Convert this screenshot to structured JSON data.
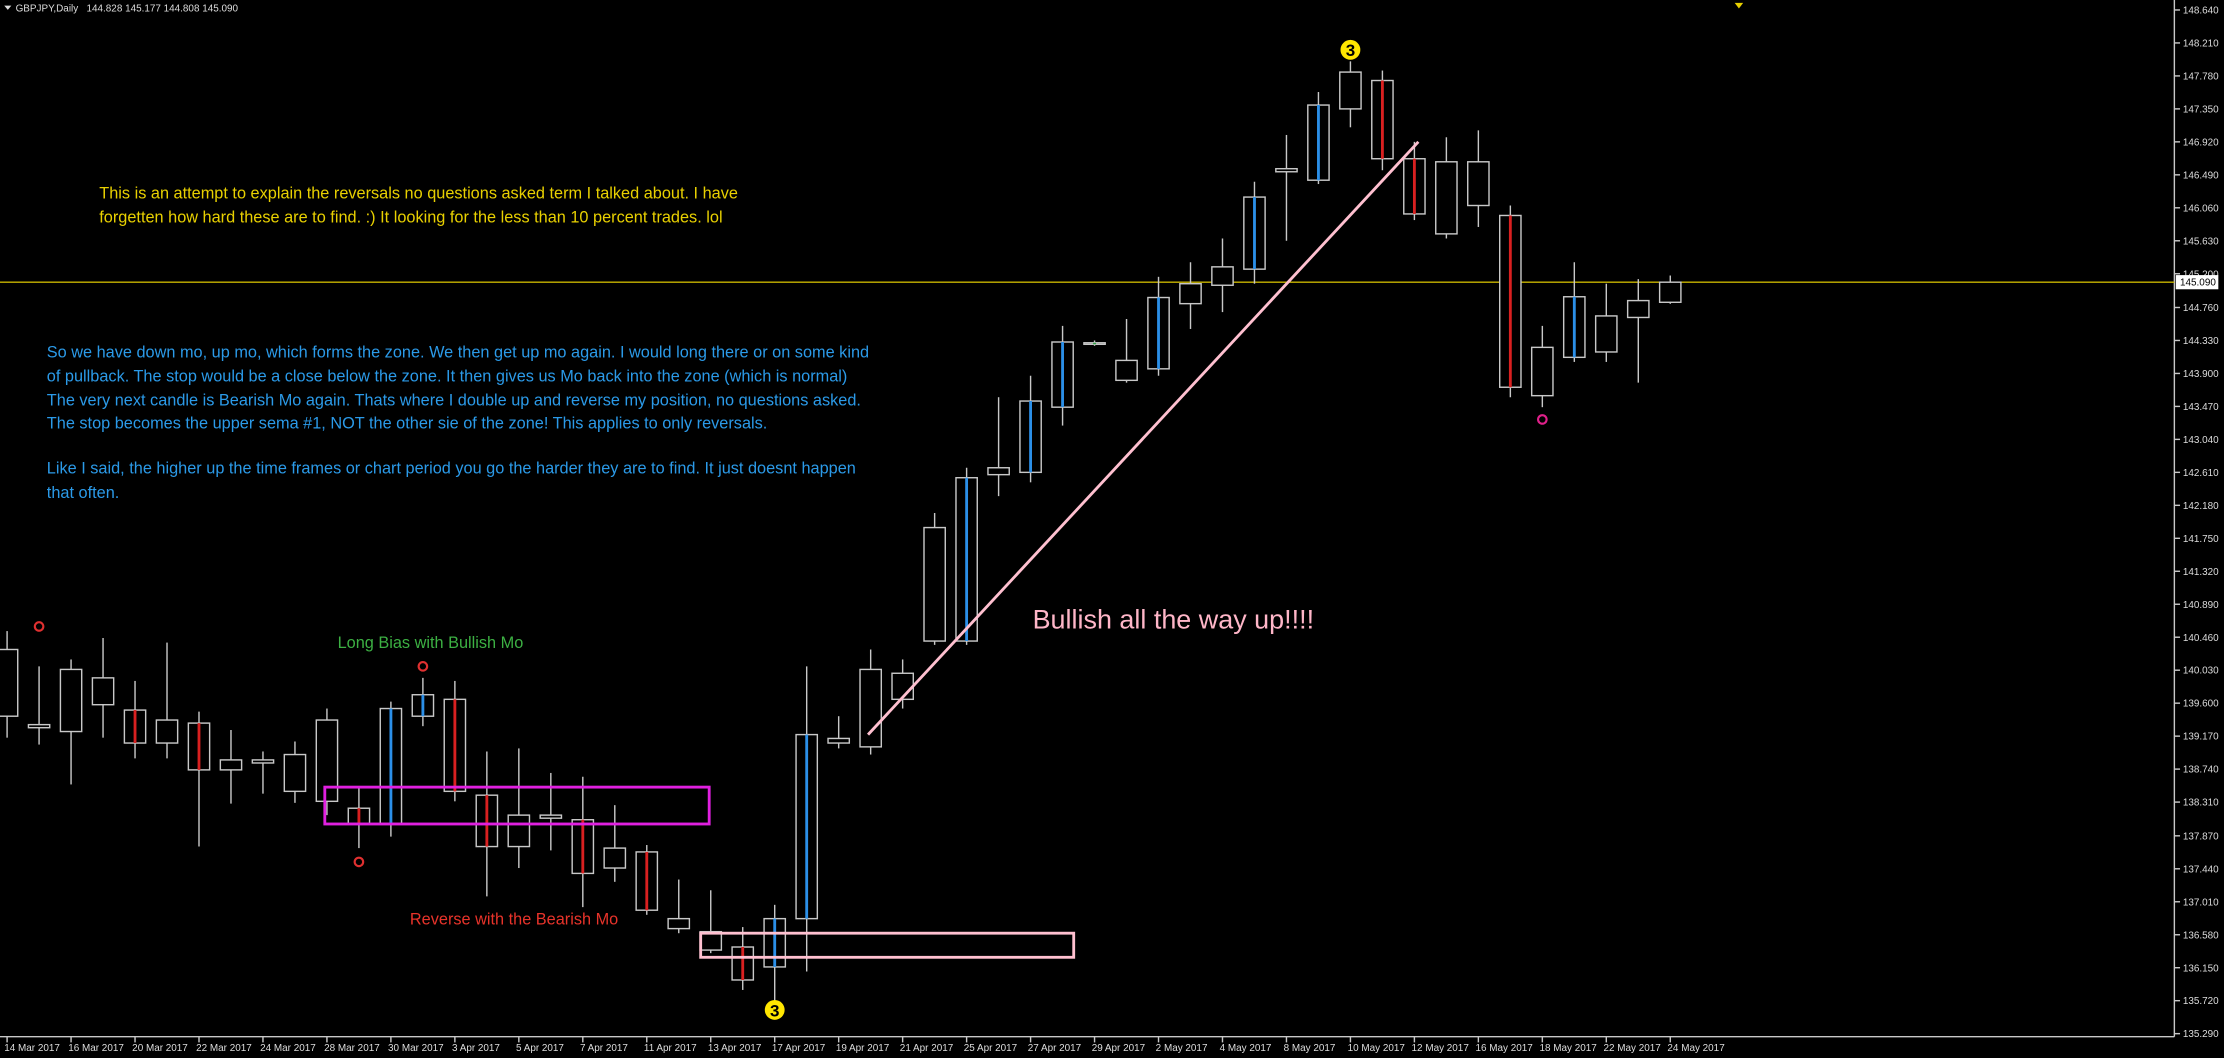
{
  "chart_data": {
    "type": "candlestick",
    "symbol": "GBPJPY,Daily",
    "header_prices": "144.828 145.177 144.808 145.090",
    "categories": [
      "14 Mar 2017",
      null,
      "16 Mar 2017",
      null,
      "20 Mar 2017",
      null,
      "22 Mar 2017",
      null,
      "24 Mar 2017",
      null,
      "28 Mar 2017",
      null,
      "30 Mar 2017",
      null,
      "3 Apr 2017",
      null,
      "5 Apr 2017",
      null,
      "7 Apr 2017",
      null,
      "11 Apr 2017",
      null,
      "13 Apr 2017",
      null,
      "17 Apr 2017",
      null,
      "19 Apr 2017",
      null,
      "21 Apr 2017",
      null,
      "25 Apr 2017",
      null,
      "27 Apr 2017",
      null,
      "29 Apr 2017",
      null,
      "2 May 2017",
      null,
      "4 May 2017",
      null,
      "8 May 2017",
      null,
      "10 May 2017",
      null,
      "12 May 2017",
      null,
      "16 May 2017",
      null,
      "18 May 2017",
      null,
      "22 May 2017",
      null,
      "24 May 2017"
    ],
    "open": [
      139.43,
      139.32,
      139.23,
      139.93,
      139.51,
      139.38,
      139.34,
      138.86,
      138.82,
      138.93,
      139.38,
      138.23,
      138.03,
      139.43,
      139.65,
      138.4,
      137.73,
      138.14,
      138.08,
      137.71,
      137.66,
      136.79,
      136.62,
      136.42,
      136.16,
      136.79,
      139.08,
      139.03,
      139.65,
      140.41,
      140.41,
      142.58,
      142.61,
      143.46,
      144.28,
      143.81,
      143.96,
      144.81,
      145.05,
      145.26,
      146.53,
      146.42,
      147.35,
      147.72,
      146.7,
      146.66,
      146.66,
      145.96,
      144.24,
      144.11,
      144.18,
      144.63,
      144.828
    ],
    "high": [
      140.54,
      140.08,
      140.17,
      140.45,
      139.89,
      140.39,
      139.49,
      139.25,
      138.97,
      139.1,
      139.53,
      138.51,
      139.62,
      139.93,
      139.89,
      138.97,
      139.01,
      138.69,
      138.64,
      138.27,
      137.75,
      137.3,
      137.16,
      136.68,
      136.97,
      140.08,
      139.43,
      140.3,
      140.17,
      142.08,
      142.67,
      143.59,
      143.87,
      144.52,
      144.33,
      144.61,
      145.16,
      145.35,
      145.66,
      146.4,
      147.01,
      147.57,
      147.97,
      147.85,
      146.92,
      146.98,
      147.07,
      146.09,
      144.52,
      145.35,
      145.07,
      145.13,
      145.177
    ],
    "low": [
      139.15,
      139.06,
      138.54,
      139.15,
      138.88,
      138.88,
      137.73,
      138.29,
      138.42,
      138.3,
      138.14,
      137.71,
      137.86,
      139.3,
      138.32,
      137.08,
      137.45,
      137.68,
      136.94,
      137.27,
      136.84,
      136.6,
      136.34,
      135.86,
      135.68,
      136.1,
      139.01,
      138.93,
      139.53,
      140.36,
      140.36,
      142.3,
      142.48,
      143.22,
      144.26,
      143.78,
      143.87,
      144.48,
      144.7,
      145.07,
      145.63,
      146.37,
      147.11,
      146.55,
      145.9,
      145.66,
      145.81,
      143.59,
      143.46,
      144.05,
      144.05,
      143.78,
      144.808
    ],
    "close": [
      140.3,
      139.28,
      140.04,
      139.58,
      139.08,
      139.08,
      138.73,
      138.73,
      138.86,
      138.45,
      138.32,
      138.03,
      139.53,
      139.71,
      138.45,
      137.73,
      138.14,
      138.1,
      137.38,
      137.45,
      136.9,
      136.66,
      136.38,
      135.99,
      136.79,
      139.19,
      139.14,
      140.04,
      139.99,
      141.89,
      142.54,
      142.67,
      143.54,
      144.31,
      144.3,
      144.07,
      144.89,
      145.07,
      145.29,
      146.2,
      146.57,
      147.4,
      147.83,
      146.7,
      145.98,
      145.72,
      146.09,
      143.72,
      143.61,
      144.9,
      144.65,
      144.85,
      145.09
    ],
    "mo_colors": [
      null,
      null,
      null,
      null,
      "#d92020",
      null,
      "#d92020",
      null,
      null,
      null,
      null,
      "#d92020",
      "#2b8fe8",
      "#2b8fe8",
      "#d92020",
      "#d92020",
      null,
      null,
      "#d92020",
      null,
      "#d92020",
      null,
      null,
      "#d92020",
      "#2b8fe8",
      "#2b8fe8",
      null,
      null,
      null,
      null,
      "#2b8fe8",
      null,
      "#2b8fe8",
      "#2b8fe8",
      "#2ea043",
      null,
      "#2b8fe8",
      null,
      null,
      "#2b8fe8",
      null,
      "#2b8fe8",
      null,
      "#d92020",
      "#d92020",
      null,
      null,
      "#d92020",
      null,
      "#2b8fe8",
      null,
      null,
      null
    ],
    "candle_color": "#c8c8c8",
    "ylim": [
      135.25,
      148.77
    ],
    "yticks": [
      {
        "value": 135.29,
        "label": "135.290"
      },
      {
        "value": 135.72,
        "label": "135.720"
      },
      {
        "value": 136.15,
        "label": "136.150"
      },
      {
        "value": 136.58,
        "label": "136.580"
      },
      {
        "value": 137.01,
        "label": "137.010"
      },
      {
        "value": 137.44,
        "label": "137.440"
      },
      {
        "value": 137.87,
        "label": "137.870"
      },
      {
        "value": 138.31,
        "label": "138.310"
      },
      {
        "value": 138.74,
        "label": "138.740"
      },
      {
        "value": 139.17,
        "label": "139.170"
      },
      {
        "value": 139.6,
        "label": "139.600"
      },
      {
        "value": 140.03,
        "label": "140.030"
      },
      {
        "value": 140.46,
        "label": "140.460"
      },
      {
        "value": 140.89,
        "label": "140.890"
      },
      {
        "value": 141.32,
        "label": "141.320"
      },
      {
        "value": 141.75,
        "label": "141.750"
      },
      {
        "value": 142.18,
        "label": "142.180"
      },
      {
        "value": 142.61,
        "label": "142.610"
      },
      {
        "value": 143.04,
        "label": "143.040"
      },
      {
        "value": 143.47,
        "label": "143.470"
      },
      {
        "value": 143.9,
        "label": "143.900"
      },
      {
        "value": 144.33,
        "label": "144.330"
      },
      {
        "value": 144.76,
        "label": "144.760"
      },
      {
        "value": 145.2,
        "label": "145.200"
      },
      {
        "value": 145.63,
        "label": "145.630"
      },
      {
        "value": 146.06,
        "label": "146.060"
      },
      {
        "value": 146.49,
        "label": "146.490"
      },
      {
        "value": 146.92,
        "label": "146.920"
      },
      {
        "value": 147.35,
        "label": "147.350"
      },
      {
        "value": 147.78,
        "label": "147.780"
      },
      {
        "value": 148.21,
        "label": "148.210"
      },
      {
        "value": 148.64,
        "label": "148.640"
      }
    ],
    "current_price": {
      "value": 145.09,
      "label": "145.090",
      "color": "#c8b400"
    },
    "markers": [
      {
        "index": 1,
        "value": 140.6,
        "color": "#e03030"
      },
      {
        "index": 11,
        "value": 137.53,
        "color": "#e03030"
      },
      {
        "index": 13,
        "value": 140.08,
        "color": "#e03030"
      },
      {
        "index": 42,
        "value": 148.12,
        "label": "3",
        "color": "#ffe600"
      },
      {
        "index": 24,
        "value": 135.6,
        "label": "3",
        "color": "#ffe600"
      },
      {
        "index": 48,
        "value": 143.3,
        "color": "#e0208a"
      }
    ],
    "annotations": {
      "intro": [
        "This is an attempt to explain the reversals no questions asked term I talked about. I have",
        "forgetten how hard these are to find. :) It looking for the less than 10 percent trades. lol"
      ],
      "explanation": [
        "So we have down mo, up mo, which forms the zone. We then get up mo again. I would long there or on some kind",
        "of pullback. The stop would be a close below the zone.  It then gives us Mo back into the zone (which is normal)",
        "The very next candle is Bearish Mo again. Thats where I double up and reverse my position, no questions asked.",
        "The stop becomes the upper sema #1, NOT the other sie of the zone! This applies to only reversals."
      ],
      "note": [
        "Like I said, the higher up the time frames or chart period you go the harder they are to find. It just doesnt happen",
        "that often."
      ],
      "long_bias": "Long Bias with Bullish Mo",
      "reverse": "Reverse with the Bearish Mo",
      "bullish": "Bullish all the way up!!!!"
    }
  }
}
